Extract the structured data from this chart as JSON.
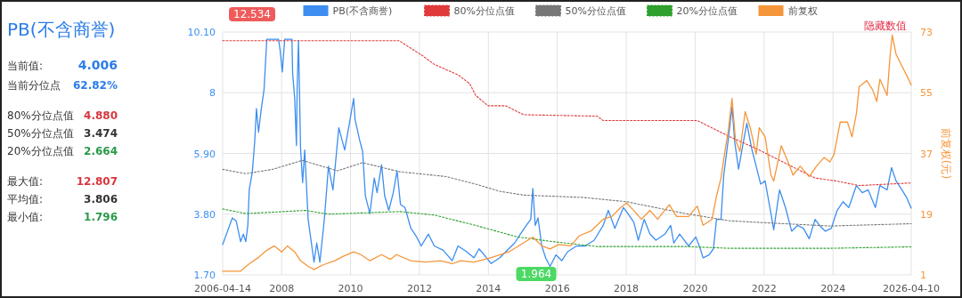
{
  "chart_data": [
    {
      "type": "other",
      "title": "PB(不含商誉)",
      "annotations": [
        "当前值:",
        "4.006",
        "当前分位点",
        "62.82%",
        "80%分位点值",
        "4.880",
        "50%分位点值",
        "3.474",
        "20%分位点值",
        "2.664",
        "最大值:",
        "12.807",
        "平均值:",
        "3.806",
        "最小值:",
        "1.796"
      ]
    },
    {
      "type": "line",
      "y2label": "前复权(元)",
      "xlim": [
        2006.29,
        2026.27
      ],
      "xticks": [
        {
          "value": 2006.29,
          "label": "2006-04-14"
        },
        2008,
        2010,
        2012,
        2014,
        2016,
        2018,
        2020,
        2022,
        2024,
        {
          "value": 2026.27,
          "label": "2026-04-10"
        }
      ],
      "ylim": [
        1.7,
        10.1
      ],
      "yticks": [
        {
          "value": 1.7,
          "label": "1.70"
        },
        {
          "value": 3.8,
          "label": "3.80"
        },
        {
          "value": 5.9,
          "label": "5.90"
        },
        8,
        {
          "value": 10.1,
          "label": "10.10"
        }
      ],
      "y2lim": [
        1,
        73
      ],
      "y2ticks": [
        1,
        19,
        37,
        55,
        73
      ],
      "grid": true,
      "legend": "top",
      "annotations": [
        "12.534",
        "1.964",
        "隐藏数值"
      ],
      "series": [
        {
          "name": "PB(不含商誉)",
          "color": "#3d8ef0",
          "line_style": "solid",
          "x": [
            2006.29,
            2006.57,
            2006.68,
            2006.81,
            2006.89,
            2006.96,
            2007.02,
            2007.06,
            2007.15,
            2007.22,
            2007.27,
            2007.33,
            2007.4,
            2007.49,
            2007.57,
            2007.91,
            2007.96,
            2008.02,
            2008.09,
            2008.3,
            2008.32,
            2008.38,
            2008.43,
            2008.45,
            2008.49,
            2008.55,
            2008.61,
            2008.67,
            2008.77,
            2008.94,
            2009.02,
            2009.11,
            2009.24,
            2009.36,
            2009.49,
            2009.66,
            2009.83,
            2009.96,
            2010.09,
            2010.13,
            2010.26,
            2010.35,
            2010.43,
            2010.56,
            2010.69,
            2010.77,
            2010.9,
            2010.99,
            2011.11,
            2011.24,
            2011.35,
            2011.45,
            2011.58,
            2011.75,
            2011.92,
            2012.05,
            2012.26,
            2012.43,
            2012.69,
            2012.95,
            2013.12,
            2013.37,
            2013.58,
            2013.73,
            2013.95,
            2014.08,
            2014.33,
            2014.59,
            2014.76,
            2014.93,
            2015.1,
            2015.23,
            2015.29,
            2015.36,
            2015.44,
            2015.55,
            2015.66,
            2015.79,
            2015.96,
            2016.13,
            2016.3,
            2016.56,
            2016.81,
            2017.07,
            2017.33,
            2017.48,
            2017.67,
            2017.92,
            2018.05,
            2018.22,
            2018.35,
            2018.52,
            2018.69,
            2018.86,
            2019.12,
            2019.29,
            2019.38,
            2019.55,
            2019.81,
            2020.02,
            2020.15,
            2020.23,
            2020.4,
            2020.53,
            2020.62,
            2020.75,
            2020.83,
            2020.96,
            2021.07,
            2021.15,
            2021.26,
            2021.38,
            2021.5,
            2021.64,
            2021.77,
            2021.9,
            2022.03,
            2022.2,
            2022.28,
            2022.45,
            2022.62,
            2022.8,
            2022.97,
            2023.14,
            2023.31,
            2023.48,
            2023.61,
            2023.78,
            2023.95,
            2024.12,
            2024.29,
            2024.46,
            2024.68,
            2024.85,
            2025.02,
            2025.23,
            2025.36,
            2025.57,
            2025.7,
            2025.83,
            2026.0,
            2026.13,
            2026.27
          ],
          "values": [
            2.75,
            3.67,
            3.57,
            2.85,
            3.11,
            2.85,
            3.41,
            4.64,
            5.25,
            6.32,
            7.45,
            6.63,
            7.35,
            8.11,
            9.85,
            9.85,
            9.44,
            8.72,
            9.85,
            9.85,
            8.67,
            7.8,
            6.17,
            8.11,
            9.8,
            6.07,
            4.89,
            6.02,
            3.62,
            2.14,
            2.8,
            2.14,
            3.62,
            5.46,
            4.64,
            6.79,
            6.02,
            6.89,
            7.8,
            7.09,
            6.38,
            5.97,
            4.44,
            3.82,
            5.05,
            4.54,
            5.51,
            4.44,
            3.93,
            4.54,
            5.3,
            4.13,
            4.03,
            3.31,
            3.01,
            2.7,
            3.11,
            2.7,
            2.55,
            2.19,
            2.7,
            2.5,
            2.29,
            2.6,
            2.29,
            2.09,
            2.29,
            2.6,
            2.8,
            3.11,
            3.41,
            3.62,
            4.69,
            3.41,
            3.67,
            2.7,
            2.29,
            1.99,
            2.39,
            2.19,
            2.5,
            2.7,
            2.7,
            2.9,
            3.41,
            3.93,
            3.31,
            4.03,
            3.82,
            3.52,
            2.9,
            3.62,
            3.11,
            2.9,
            3.11,
            3.41,
            2.8,
            3.11,
            2.7,
            3.01,
            2.6,
            2.29,
            2.39,
            2.6,
            3.62,
            3.62,
            5.15,
            6.38,
            7.5,
            6.28,
            5.36,
            6.17,
            6.94,
            6.07,
            5.46,
            4.84,
            4.95,
            3.82,
            3.26,
            4.64,
            4.03,
            3.21,
            3.41,
            3.31,
            2.95,
            3.62,
            3.41,
            3.21,
            3.31,
            3.93,
            4.23,
            4.03,
            4.79,
            4.54,
            4.64,
            4.03,
            4.79,
            4.64,
            5.41,
            4.95,
            4.64,
            4.39,
            4.01
          ]
        },
        {
          "name": "80%分位点值",
          "color": "#e03a3a",
          "line_style": "dotted",
          "x": [
            2006.29,
            2011.41,
            2012.09,
            2012.43,
            2013.12,
            2013.46,
            2013.63,
            2013.99,
            2014.5,
            2015.02,
            2017.16,
            2017.33,
            2020.06,
            2021.0,
            2021.77,
            2022.62,
            2023.48,
            2024.08,
            2024.76,
            2026.27
          ],
          "values": [
            9.8,
            9.8,
            9.28,
            8.98,
            8.62,
            8.31,
            7.91,
            7.55,
            7.55,
            7.24,
            7.19,
            7.04,
            7.04,
            6.48,
            6.07,
            5.56,
            5.05,
            4.95,
            4.79,
            4.88
          ]
        },
        {
          "name": "50%分位点值",
          "color": "#777777",
          "line_style": "dotted",
          "x": [
            2006.29,
            2006.96,
            2007.74,
            2008.6,
            2009.62,
            2010.35,
            2011.41,
            2012.78,
            2013.63,
            2014.33,
            2015.02,
            2016.73,
            2018.01,
            2019.72,
            2021.0,
            2021.77,
            2023.91,
            2026.27
          ],
          "values": [
            5.35,
            5.2,
            5.35,
            5.66,
            5.3,
            5.58,
            5.27,
            5.1,
            4.84,
            4.59,
            4.46,
            4.38,
            4.23,
            3.82,
            3.57,
            3.52,
            3.39,
            3.47
          ]
        },
        {
          "name": "20%分位点值",
          "color": "#2ea02e",
          "line_style": "dotted",
          "x": [
            2006.29,
            2006.96,
            2008.69,
            2009.36,
            2011.41,
            2012.43,
            2013.63,
            2014.85,
            2015.87,
            2017.16,
            2019.72,
            2021.0,
            2023.91,
            2026.27
          ],
          "values": [
            3.98,
            3.82,
            3.93,
            3.8,
            3.89,
            3.77,
            3.41,
            3.01,
            2.85,
            2.68,
            2.68,
            2.62,
            2.62,
            2.67
          ]
        },
        {
          "name": "前复权",
          "color": "#f5963a",
          "line_style": "solid",
          "axis": "y2",
          "x": [
            2006.29,
            2006.81,
            2007.06,
            2007.32,
            2007.57,
            2007.79,
            2008.0,
            2008.17,
            2008.38,
            2008.55,
            2008.77,
            2008.94,
            2009.19,
            2009.54,
            2009.79,
            2010.09,
            2010.3,
            2010.56,
            2010.9,
            2011.16,
            2011.33,
            2011.75,
            2012.18,
            2012.61,
            2012.95,
            2013.2,
            2013.58,
            2013.73,
            2014.08,
            2014.59,
            2015.02,
            2015.29,
            2015.55,
            2015.79,
            2016.04,
            2016.39,
            2016.64,
            2016.98,
            2017.33,
            2017.58,
            2017.84,
            2018.01,
            2018.22,
            2018.44,
            2018.69,
            2018.91,
            2019.25,
            2019.46,
            2019.81,
            2020.06,
            2020.23,
            2020.49,
            2020.62,
            2020.75,
            2020.85,
            2020.96,
            2021.07,
            2021.17,
            2021.3,
            2021.45,
            2021.6,
            2021.77,
            2021.86,
            2022.03,
            2022.2,
            2022.28,
            2022.5,
            2022.71,
            2022.84,
            2023.05,
            2023.31,
            2023.52,
            2023.74,
            2023.91,
            2024.03,
            2024.21,
            2024.42,
            2024.55,
            2024.68,
            2024.76,
            2024.98,
            2025.15,
            2025.27,
            2025.36,
            2025.57,
            2025.66,
            2025.72,
            2025.83,
            2026.0,
            2026.13,
            2026.27
          ],
          "values": [
            2.1,
            2.1,
            4.3,
            6.1,
            8.3,
            9.6,
            7.8,
            9.6,
            7.8,
            5.2,
            3.5,
            2.6,
            3.9,
            5.2,
            6.5,
            7.8,
            7.0,
            5.2,
            7.0,
            5.6,
            7.0,
            5.2,
            4.8,
            5.2,
            4.3,
            5.2,
            4.8,
            5.2,
            6.1,
            7.8,
            10.5,
            12.2,
            9.6,
            8.7,
            10.0,
            9.6,
            12.6,
            14.0,
            17.5,
            18.3,
            21.0,
            22.3,
            20.1,
            17.5,
            20.1,
            17.5,
            21.8,
            18.3,
            18.3,
            21.4,
            15.7,
            17.5,
            24.4,
            29.7,
            36.7,
            43.7,
            53.3,
            41.1,
            37.6,
            49.4,
            44.6,
            36.7,
            44.6,
            41.9,
            30.6,
            28.8,
            39.3,
            34.1,
            30.6,
            33.2,
            30.1,
            33.2,
            35.8,
            34.5,
            36.7,
            46.3,
            46.3,
            41.9,
            48.9,
            56.8,
            58.6,
            55.9,
            52.4,
            59.0,
            54.2,
            66.4,
            72.1,
            66.4,
            62.9,
            60.3,
            57.3
          ]
        }
      ]
    }
  ]
}
